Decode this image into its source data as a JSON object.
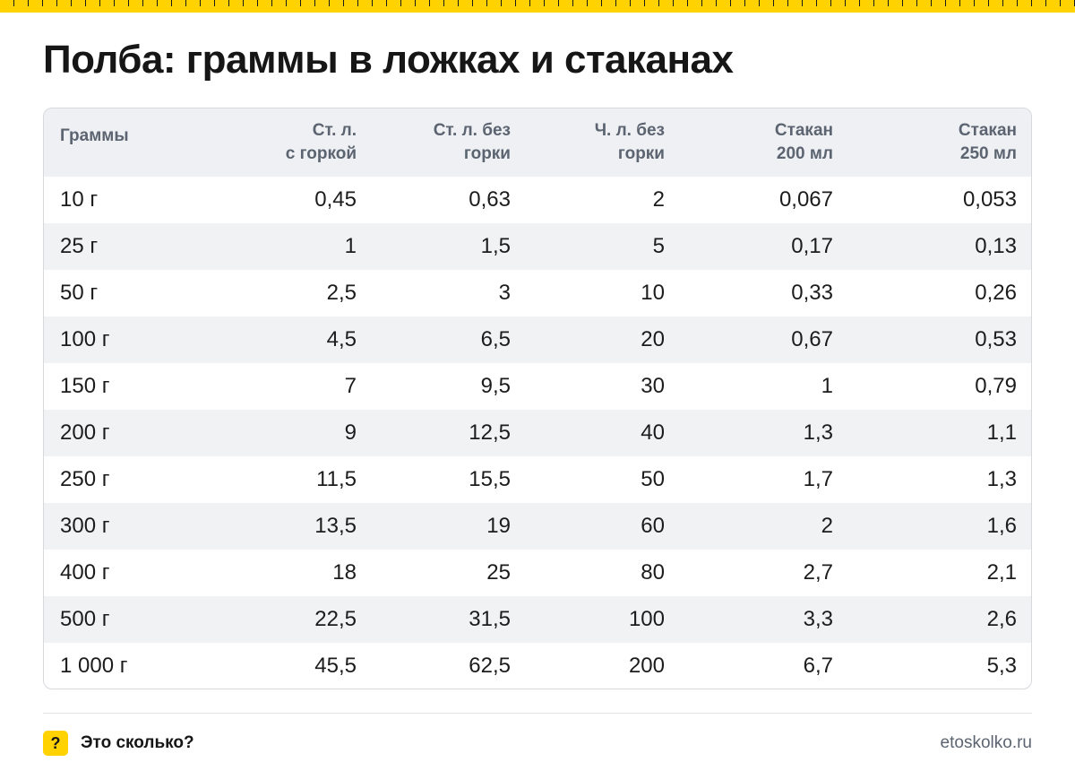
{
  "colors": {
    "accent": "#ffd200",
    "header_bg": "#eef0f3",
    "stripe_bg": "#f1f2f4",
    "header_text": "#5b6470"
  },
  "title": "Полба: граммы в ложках и стаканах",
  "table": {
    "headers": [
      [
        "Граммы",
        ""
      ],
      [
        "Ст. л.",
        "с горкой"
      ],
      [
        "Ст. л. без",
        "горки"
      ],
      [
        "Ч. л. без",
        "горки"
      ],
      [
        "Стакан",
        "200 мл"
      ],
      [
        "Стакан",
        "250 мл"
      ]
    ],
    "rows": [
      [
        "10 г",
        "0,45",
        "0,63",
        "2",
        "0,067",
        "0,053"
      ],
      [
        "25 г",
        "1",
        "1,5",
        "5",
        "0,17",
        "0,13"
      ],
      [
        "50 г",
        "2,5",
        "3",
        "10",
        "0,33",
        "0,26"
      ],
      [
        "100 г",
        "4,5",
        "6,5",
        "20",
        "0,67",
        "0,53"
      ],
      [
        "150 г",
        "7",
        "9,5",
        "30",
        "1",
        "0,79"
      ],
      [
        "200 г",
        "9",
        "12,5",
        "40",
        "1,3",
        "1,1"
      ],
      [
        "250 г",
        "11,5",
        "15,5",
        "50",
        "1,7",
        "1,3"
      ],
      [
        "300 г",
        "13,5",
        "19",
        "60",
        "2",
        "1,6"
      ],
      [
        "400 г",
        "18",
        "25",
        "80",
        "2,7",
        "2,1"
      ],
      [
        "500 г",
        "22,5",
        "31,5",
        "100",
        "3,3",
        "2,6"
      ],
      [
        "1 000 г",
        "45,5",
        "62,5",
        "200",
        "6,7",
        "5,3"
      ]
    ]
  },
  "footer": {
    "logo_glyph": "?",
    "brand": "Это сколько?",
    "url": "etoskolko.ru"
  }
}
